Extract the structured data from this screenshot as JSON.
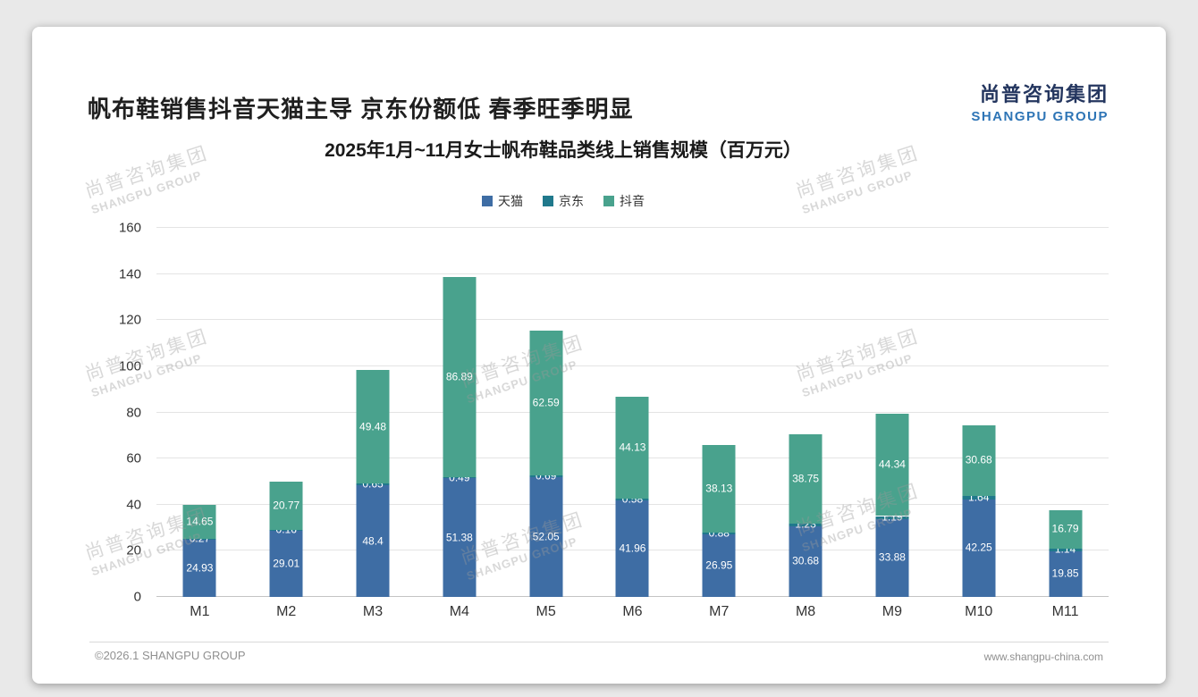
{
  "page": {
    "title": "帆布鞋销售抖音天猫主导 京东份额低 春季旺季明显",
    "logo": {
      "cn": "尚普咨询集团",
      "en": "SHANGPU GROUP"
    },
    "footer_left": "©2026.1 SHANGPU GROUP",
    "footer_right": "www.shangpu-china.com",
    "watermark": {
      "cn": "尚普咨询集团",
      "en": "SHANGPU GROUP"
    }
  },
  "chart_data": {
    "type": "bar",
    "stacked": true,
    "title": "2025年1月~11月女士帆布鞋品类线上销售规模（百万元）",
    "categories": [
      "M1",
      "M2",
      "M3",
      "M4",
      "M5",
      "M6",
      "M7",
      "M8",
      "M9",
      "M10",
      "M11"
    ],
    "series": [
      {
        "name": "天猫",
        "color": "#3e6da4",
        "values": [
          24.93,
          29.01,
          48.4,
          51.38,
          52.05,
          41.96,
          26.95,
          30.68,
          33.88,
          42.25,
          19.85
        ]
      },
      {
        "name": "京东",
        "color": "#20798c",
        "values": [
          0.27,
          0.16,
          0.65,
          0.49,
          0.69,
          0.58,
          0.88,
          1.23,
          1.19,
          1.64,
          1.14
        ]
      },
      {
        "name": "抖音",
        "color": "#49a28d",
        "values": [
          14.65,
          20.77,
          49.48,
          86.89,
          62.59,
          44.13,
          38.13,
          38.75,
          44.34,
          30.68,
          16.79
        ]
      }
    ],
    "xlabel": "",
    "ylabel": "",
    "ylim": [
      0,
      160
    ],
    "ytick_step": 20,
    "legend_position": "top",
    "grid": true
  }
}
